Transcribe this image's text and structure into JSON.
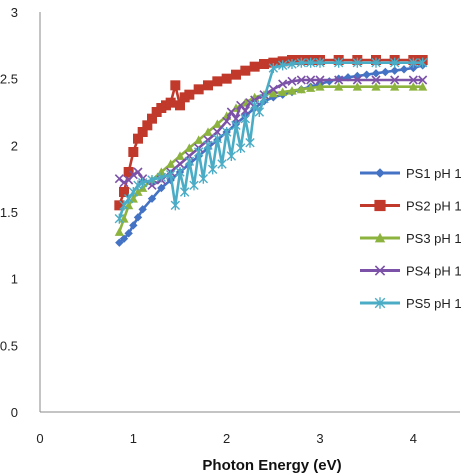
{
  "chart_data": {
    "type": "line",
    "title": "",
    "xlabel": "Photon Energy (eV)",
    "ylabel": "",
    "xlim": [
      0,
      4.5
    ],
    "ylim": [
      0,
      3
    ],
    "x_ticks": [
      0,
      1,
      2,
      3,
      4
    ],
    "y_ticks": [
      0,
      0.5,
      1,
      1.5,
      2,
      2.5,
      3
    ],
    "y_tick_labels": [
      "0",
      "0.5",
      "1",
      "1.5",
      "2",
      "2.5",
      "3"
    ],
    "x_tick_labels": [
      "0",
      "1",
      "2",
      "3",
      "4"
    ],
    "grid": false,
    "legend_position": "right",
    "series": [
      {
        "name": "PS1 pH 1",
        "color": "#4472C4",
        "marker": "diamond",
        "x": [
          0.85,
          0.9,
          0.95,
          1.0,
          1.05,
          1.1,
          1.2,
          1.3,
          1.4,
          1.5,
          1.6,
          1.7,
          1.8,
          1.9,
          2.0,
          2.1,
          2.2,
          2.3,
          2.4,
          2.5,
          2.6,
          2.7,
          2.8,
          2.9,
          3.0,
          3.1,
          3.2,
          3.3,
          3.4,
          3.5,
          3.6,
          3.7,
          3.8,
          3.9,
          4.0,
          4.1
        ],
        "y": [
          1.27,
          1.3,
          1.34,
          1.4,
          1.46,
          1.52,
          1.6,
          1.68,
          1.74,
          1.8,
          1.86,
          1.92,
          1.98,
          2.04,
          2.1,
          2.16,
          2.22,
          2.28,
          2.33,
          2.36,
          2.38,
          2.4,
          2.42,
          2.44,
          2.46,
          2.48,
          2.5,
          2.51,
          2.52,
          2.53,
          2.54,
          2.55,
          2.56,
          2.57,
          2.58,
          2.6
        ]
      },
      {
        "name": "PS2 pH 1",
        "color": "#C0392B",
        "marker": "square",
        "x": [
          0.85,
          0.9,
          0.95,
          1.0,
          1.05,
          1.1,
          1.15,
          1.2,
          1.25,
          1.3,
          1.35,
          1.4,
          1.45,
          1.5,
          1.55,
          1.6,
          1.7,
          1.8,
          1.9,
          2.0,
          2.1,
          2.2,
          2.3,
          2.4,
          2.5,
          2.6,
          2.7,
          2.8,
          2.9,
          3.0,
          3.2,
          3.4,
          3.6,
          3.8,
          4.0,
          4.1
        ],
        "y": [
          1.55,
          1.65,
          1.8,
          1.95,
          2.05,
          2.1,
          2.15,
          2.2,
          2.25,
          2.28,
          2.3,
          2.32,
          2.45,
          2.3,
          2.36,
          2.38,
          2.42,
          2.45,
          2.48,
          2.5,
          2.53,
          2.56,
          2.59,
          2.61,
          2.62,
          2.63,
          2.64,
          2.64,
          2.64,
          2.64,
          2.64,
          2.64,
          2.64,
          2.64,
          2.64,
          2.64
        ]
      },
      {
        "name": "PS3 pH 1",
        "color": "#8DB33F",
        "marker": "triangle",
        "x": [
          0.85,
          0.9,
          0.95,
          1.0,
          1.05,
          1.1,
          1.2,
          1.3,
          1.4,
          1.5,
          1.6,
          1.7,
          1.8,
          1.9,
          2.0,
          2.1,
          2.2,
          2.3,
          2.4,
          2.5,
          2.6,
          2.7,
          2.8,
          2.9,
          3.0,
          3.2,
          3.4,
          3.6,
          3.8,
          4.0,
          4.1
        ],
        "y": [
          1.35,
          1.45,
          1.55,
          1.6,
          1.65,
          1.68,
          1.74,
          1.8,
          1.86,
          1.92,
          1.98,
          2.04,
          2.1,
          2.16,
          2.22,
          2.28,
          2.32,
          2.36,
          2.38,
          2.39,
          2.4,
          2.41,
          2.42,
          2.43,
          2.44,
          2.44,
          2.44,
          2.44,
          2.44,
          2.44,
          2.44
        ]
      },
      {
        "name": "PS4 pH 1",
        "color": "#7B52A8",
        "marker": "x",
        "x": [
          0.85,
          0.9,
          0.95,
          1.0,
          1.05,
          1.1,
          1.2,
          1.3,
          1.4,
          1.5,
          1.6,
          1.7,
          1.8,
          1.9,
          2.0,
          2.05,
          2.1,
          2.15,
          2.2,
          2.25,
          2.3,
          2.4,
          2.5,
          2.6,
          2.7,
          2.8,
          2.9,
          3.0,
          3.2,
          3.4,
          3.6,
          3.8,
          4.0,
          4.1
        ],
        "y": [
          1.75,
          1.72,
          1.74,
          1.78,
          1.8,
          1.75,
          1.7,
          1.74,
          1.8,
          1.86,
          1.92,
          1.98,
          2.04,
          2.1,
          2.18,
          2.25,
          2.2,
          2.3,
          2.26,
          2.32,
          2.34,
          2.38,
          2.42,
          2.46,
          2.48,
          2.49,
          2.49,
          2.49,
          2.49,
          2.49,
          2.49,
          2.49,
          2.49,
          2.49
        ]
      },
      {
        "name": "PS5 pH 1",
        "color": "#4BACC6",
        "marker": "star",
        "x": [
          0.85,
          0.9,
          0.95,
          1.0,
          1.05,
          1.1,
          1.2,
          1.3,
          1.4,
          1.45,
          1.5,
          1.55,
          1.6,
          1.65,
          1.7,
          1.75,
          1.8,
          1.85,
          1.9,
          1.95,
          2.0,
          2.05,
          2.1,
          2.15,
          2.2,
          2.25,
          2.3,
          2.35,
          2.4,
          2.5,
          2.6,
          2.7,
          2.8,
          2.9,
          3.0,
          3.2,
          3.4,
          3.6,
          3.8,
          4.0,
          4.1
        ],
        "y": [
          1.45,
          1.55,
          1.6,
          1.65,
          1.7,
          1.72,
          1.74,
          1.76,
          1.78,
          1.55,
          1.8,
          1.65,
          1.88,
          1.7,
          1.95,
          1.75,
          2.0,
          1.82,
          2.05,
          1.86,
          2.1,
          1.92,
          2.15,
          1.98,
          2.2,
          2.02,
          2.3,
          2.25,
          2.35,
          2.58,
          2.6,
          2.61,
          2.62,
          2.62,
          2.62,
          2.62,
          2.62,
          2.62,
          2.62,
          2.62,
          2.62
        ]
      }
    ]
  }
}
